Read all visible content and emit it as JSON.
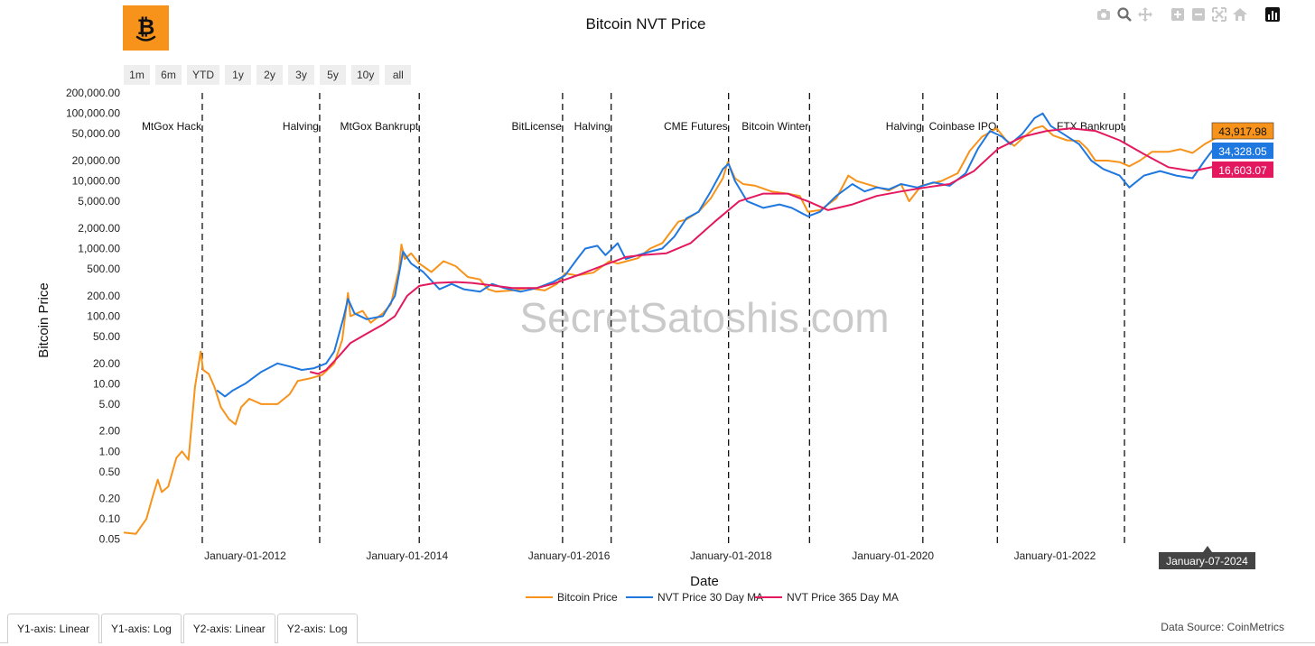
{
  "logo": {
    "glyph": "₿"
  },
  "toolbar": {
    "icons": [
      "camera-icon",
      "zoom-icon",
      "pan-icon",
      "zoom-in-icon",
      "zoom-out-icon",
      "autoscale-icon",
      "home-icon",
      "chart-bars-icon"
    ]
  },
  "range_buttons": [
    "1m",
    "6m",
    "YTD",
    "1y",
    "2y",
    "3y",
    "5y",
    "10y",
    "all"
  ],
  "tabs": [
    "Y1-axis: Linear",
    "Y1-axis: Log",
    "Y2-axis: Linear",
    "Y2-axis: Log"
  ],
  "source": "Data Source: CoinMetrics",
  "watermark": "SecretSatoshis.com",
  "chart_data": {
    "type": "line",
    "title": "Bitcoin NVT Price",
    "xlabel": "Date",
    "ylabel": "Bitcoin Price",
    "yscale": "log",
    "ylim": [
      0.04,
      220000
    ],
    "xlim": [
      2010.5,
      2024.7
    ],
    "x_ticks": [
      {
        "x": 2012.0,
        "label": "January-01-2012"
      },
      {
        "x": 2014.0,
        "label": "January-01-2014"
      },
      {
        "x": 2016.0,
        "label": "January-01-2016"
      },
      {
        "x": 2018.0,
        "label": "January-01-2018"
      },
      {
        "x": 2020.0,
        "label": "January-01-2020"
      },
      {
        "x": 2022.0,
        "label": "January-01-2022"
      }
    ],
    "y_ticks": [
      {
        "v": 0.05,
        "label": "0.05"
      },
      {
        "v": 0.1,
        "label": "0.10"
      },
      {
        "v": 0.2,
        "label": "0.20"
      },
      {
        "v": 0.5,
        "label": "0.50"
      },
      {
        "v": 1,
        "label": "1.00"
      },
      {
        "v": 2,
        "label": "2.00"
      },
      {
        "v": 5,
        "label": "5.00"
      },
      {
        "v": 10,
        "label": "10.00"
      },
      {
        "v": 20,
        "label": "20.00"
      },
      {
        "v": 50,
        "label": "50.00"
      },
      {
        "v": 100,
        "label": "100.00"
      },
      {
        "v": 200,
        "label": "200.00"
      },
      {
        "v": 500,
        "label": "500.00"
      },
      {
        "v": 1000,
        "label": "1,000.00"
      },
      {
        "v": 2000,
        "label": "2,000.00"
      },
      {
        "v": 5000,
        "label": "5,000.00"
      },
      {
        "v": 10000,
        "label": "10,000.00"
      },
      {
        "v": 20000,
        "label": "20,000.00"
      },
      {
        "v": 50000,
        "label": "50,000.00"
      },
      {
        "v": 100000,
        "label": "100,000.00"
      },
      {
        "v": 200000,
        "label": "200,000.00"
      }
    ],
    "events": [
      {
        "x": 2011.47,
        "label": "MtGox Hack",
        "label_side": "left"
      },
      {
        "x": 2012.92,
        "label": "Halving",
        "label_side": "left"
      },
      {
        "x": 2014.15,
        "label": "MtGox Bankrupt",
        "label_side": "left"
      },
      {
        "x": 2015.92,
        "label": "BitLicense",
        "label_side": "left"
      },
      {
        "x": 2016.52,
        "label": "Halving",
        "label_side": "left"
      },
      {
        "x": 2017.97,
        "label": "CME Futures",
        "label_side": "left"
      },
      {
        "x": 2018.97,
        "label": "Bitcoin Winter",
        "label_side": "left"
      },
      {
        "x": 2020.37,
        "label": "Halving",
        "label_side": "left"
      },
      {
        "x": 2021.29,
        "label": "Coinbase IPO",
        "label_side": "left"
      },
      {
        "x": 2022.86,
        "label": "FTX Bankrupt",
        "label_side": "left"
      }
    ],
    "series": [
      {
        "name": "Bitcoin Price",
        "color": "#f7931a",
        "points": [
          [
            2010.5,
            0.063
          ],
          [
            2010.65,
            0.06
          ],
          [
            2010.78,
            0.1
          ],
          [
            2010.85,
            0.2
          ],
          [
            2010.92,
            0.38
          ],
          [
            2010.97,
            0.25
          ],
          [
            2011.05,
            0.3
          ],
          [
            2011.15,
            0.8
          ],
          [
            2011.22,
            1.0
          ],
          [
            2011.3,
            0.75
          ],
          [
            2011.38,
            9.0
          ],
          [
            2011.45,
            30.0
          ],
          [
            2011.48,
            16.0
          ],
          [
            2011.55,
            14.0
          ],
          [
            2011.62,
            9.0
          ],
          [
            2011.7,
            4.5
          ],
          [
            2011.8,
            3.0
          ],
          [
            2011.88,
            2.5
          ],
          [
            2011.95,
            4.5
          ],
          [
            2012.05,
            6.0
          ],
          [
            2012.2,
            5.0
          ],
          [
            2012.4,
            5.0
          ],
          [
            2012.55,
            7.0
          ],
          [
            2012.65,
            11.0
          ],
          [
            2012.8,
            12.0
          ],
          [
            2012.95,
            13.5
          ],
          [
            2013.1,
            20.0
          ],
          [
            2013.2,
            45.0
          ],
          [
            2013.27,
            220.0
          ],
          [
            2013.3,
            100.0
          ],
          [
            2013.45,
            120.0
          ],
          [
            2013.55,
            80.0
          ],
          [
            2013.7,
            110.0
          ],
          [
            2013.8,
            150.0
          ],
          [
            2013.9,
            500.0
          ],
          [
            2013.93,
            1150.0
          ],
          [
            2013.97,
            700.0
          ],
          [
            2014.05,
            850.0
          ],
          [
            2014.15,
            600.0
          ],
          [
            2014.3,
            450.0
          ],
          [
            2014.45,
            650.0
          ],
          [
            2014.6,
            550.0
          ],
          [
            2014.75,
            380.0
          ],
          [
            2014.9,
            350.0
          ],
          [
            2015.0,
            250.0
          ],
          [
            2015.1,
            230.0
          ],
          [
            2015.3,
            240.0
          ],
          [
            2015.5,
            260.0
          ],
          [
            2015.7,
            240.0
          ],
          [
            2015.85,
            300.0
          ],
          [
            2015.95,
            430.0
          ],
          [
            2016.1,
            400.0
          ],
          [
            2016.3,
            440.0
          ],
          [
            2016.5,
            650.0
          ],
          [
            2016.6,
            600.0
          ],
          [
            2016.85,
            720.0
          ],
          [
            2017.0,
            1000.0
          ],
          [
            2017.15,
            1200.0
          ],
          [
            2017.35,
            2500.0
          ],
          [
            2017.45,
            2700.0
          ],
          [
            2017.6,
            3500.0
          ],
          [
            2017.75,
            5500.0
          ],
          [
            2017.9,
            11000.0
          ],
          [
            2017.96,
            19000.0
          ],
          [
            2018.05,
            11000.0
          ],
          [
            2018.15,
            9000.0
          ],
          [
            2018.3,
            8500.0
          ],
          [
            2018.5,
            7000.0
          ],
          [
            2018.7,
            6500.0
          ],
          [
            2018.85,
            6000.0
          ],
          [
            2018.95,
            3500.0
          ],
          [
            2019.1,
            3700.0
          ],
          [
            2019.3,
            5500.0
          ],
          [
            2019.45,
            12000.0
          ],
          [
            2019.55,
            10000.0
          ],
          [
            2019.75,
            8500.0
          ],
          [
            2019.95,
            7200.0
          ],
          [
            2020.1,
            9000.0
          ],
          [
            2020.2,
            5000.0
          ],
          [
            2020.35,
            8500.0
          ],
          [
            2020.6,
            10000.0
          ],
          [
            2020.8,
            13000.0
          ],
          [
            2020.95,
            28000.0
          ],
          [
            2021.1,
            45000.0
          ],
          [
            2021.28,
            60000.0
          ],
          [
            2021.4,
            40000.0
          ],
          [
            2021.5,
            33000.0
          ],
          [
            2021.62,
            45000.0
          ],
          [
            2021.75,
            60000.0
          ],
          [
            2021.85,
            65000.0
          ],
          [
            2021.98,
            47000.0
          ],
          [
            2022.15,
            40000.0
          ],
          [
            2022.3,
            39000.0
          ],
          [
            2022.4,
            30000.0
          ],
          [
            2022.5,
            20000.0
          ],
          [
            2022.65,
            20000.0
          ],
          [
            2022.8,
            19000.0
          ],
          [
            2022.92,
            16500.0
          ],
          [
            2023.05,
            20000.0
          ],
          [
            2023.2,
            27000.0
          ],
          [
            2023.4,
            27000.0
          ],
          [
            2023.55,
            29500.0
          ],
          [
            2023.7,
            26000.0
          ],
          [
            2023.85,
            35000.0
          ],
          [
            2024.0,
            43917.98
          ]
        ]
      },
      {
        "name": "NVT Price 30 Day MA",
        "color": "#1f77e0",
        "points": [
          [
            2011.65,
            8.0
          ],
          [
            2011.75,
            6.5
          ],
          [
            2011.85,
            8.0
          ],
          [
            2012.0,
            10.0
          ],
          [
            2012.2,
            15.0
          ],
          [
            2012.4,
            20.0
          ],
          [
            2012.55,
            18.0
          ],
          [
            2012.7,
            16.0
          ],
          [
            2012.85,
            17.0
          ],
          [
            2013.0,
            20.0
          ],
          [
            2013.1,
            30.0
          ],
          [
            2013.22,
            100.0
          ],
          [
            2013.27,
            180.0
          ],
          [
            2013.35,
            110.0
          ],
          [
            2013.5,
            90.0
          ],
          [
            2013.7,
            100.0
          ],
          [
            2013.85,
            200.0
          ],
          [
            2013.95,
            900.0
          ],
          [
            2014.05,
            600.0
          ],
          [
            2014.2,
            450.0
          ],
          [
            2014.4,
            250.0
          ],
          [
            2014.55,
            300.0
          ],
          [
            2014.7,
            250.0
          ],
          [
            2014.9,
            230.0
          ],
          [
            2015.05,
            300.0
          ],
          [
            2015.2,
            260.0
          ],
          [
            2015.4,
            230.0
          ],
          [
            2015.6,
            260.0
          ],
          [
            2015.8,
            320.0
          ],
          [
            2015.95,
            400.0
          ],
          [
            2016.1,
            700.0
          ],
          [
            2016.2,
            1000.0
          ],
          [
            2016.35,
            1100.0
          ],
          [
            2016.45,
            800.0
          ],
          [
            2016.6,
            1200.0
          ],
          [
            2016.7,
            700.0
          ],
          [
            2016.85,
            800.0
          ],
          [
            2017.0,
            900.0
          ],
          [
            2017.15,
            1000.0
          ],
          [
            2017.3,
            1500.0
          ],
          [
            2017.45,
            2800.0
          ],
          [
            2017.6,
            3500.0
          ],
          [
            2017.75,
            7000.0
          ],
          [
            2017.9,
            15000.0
          ],
          [
            2017.97,
            18000.0
          ],
          [
            2018.05,
            10000.0
          ],
          [
            2018.2,
            5000.0
          ],
          [
            2018.4,
            4000.0
          ],
          [
            2018.6,
            4500.0
          ],
          [
            2018.75,
            4000.0
          ],
          [
            2018.95,
            3000.0
          ],
          [
            2019.1,
            3500.0
          ],
          [
            2019.3,
            6000.0
          ],
          [
            2019.5,
            9000.0
          ],
          [
            2019.65,
            7000.0
          ],
          [
            2019.8,
            8000.0
          ],
          [
            2019.95,
            7500.0
          ],
          [
            2020.1,
            9000.0
          ],
          [
            2020.3,
            8000.0
          ],
          [
            2020.5,
            9500.0
          ],
          [
            2020.7,
            8500.0
          ],
          [
            2020.9,
            13000.0
          ],
          [
            2021.05,
            30000.0
          ],
          [
            2021.2,
            55000.0
          ],
          [
            2021.35,
            45000.0
          ],
          [
            2021.45,
            35000.0
          ],
          [
            2021.6,
            50000.0
          ],
          [
            2021.75,
            85000.0
          ],
          [
            2021.85,
            100000.0
          ],
          [
            2021.95,
            65000.0
          ],
          [
            2022.1,
            50000.0
          ],
          [
            2022.3,
            35000.0
          ],
          [
            2022.45,
            20000.0
          ],
          [
            2022.6,
            15000.0
          ],
          [
            2022.8,
            12000.0
          ],
          [
            2022.92,
            8000.0
          ],
          [
            2023.1,
            12000.0
          ],
          [
            2023.3,
            14000.0
          ],
          [
            2023.5,
            12000.0
          ],
          [
            2023.7,
            11000.0
          ],
          [
            2023.85,
            20000.0
          ],
          [
            2024.0,
            34328.05
          ]
        ]
      },
      {
        "name": "NVT Price 365 Day MA",
        "color": "#e3185f",
        "points": [
          [
            2012.8,
            15.0
          ],
          [
            2012.9,
            14.0
          ],
          [
            2013.0,
            16.0
          ],
          [
            2013.15,
            25.0
          ],
          [
            2013.3,
            40.0
          ],
          [
            2013.5,
            55.0
          ],
          [
            2013.7,
            75.0
          ],
          [
            2013.85,
            100.0
          ],
          [
            2014.0,
            200.0
          ],
          [
            2014.15,
            280.0
          ],
          [
            2014.35,
            310.0
          ],
          [
            2014.6,
            320.0
          ],
          [
            2014.8,
            310.0
          ],
          [
            2015.0,
            290.0
          ],
          [
            2015.3,
            260.0
          ],
          [
            2015.6,
            260.0
          ],
          [
            2015.8,
            300.0
          ],
          [
            2016.1,
            400.0
          ],
          [
            2016.4,
            550.0
          ],
          [
            2016.7,
            750.0
          ],
          [
            2016.9,
            800.0
          ],
          [
            2017.2,
            850.0
          ],
          [
            2017.5,
            1200.0
          ],
          [
            2017.8,
            2500.0
          ],
          [
            2018.1,
            5000.0
          ],
          [
            2018.4,
            6500.0
          ],
          [
            2018.7,
            6500.0
          ],
          [
            2018.95,
            5000.0
          ],
          [
            2019.2,
            3700.0
          ],
          [
            2019.5,
            4500.0
          ],
          [
            2019.8,
            6000.0
          ],
          [
            2020.1,
            7000.0
          ],
          [
            2020.4,
            8000.0
          ],
          [
            2020.7,
            9000.0
          ],
          [
            2021.0,
            14000.0
          ],
          [
            2021.3,
            30000.0
          ],
          [
            2021.6,
            45000.0
          ],
          [
            2021.9,
            55000.0
          ],
          [
            2022.2,
            60000.0
          ],
          [
            2022.5,
            55000.0
          ],
          [
            2022.8,
            40000.0
          ],
          [
            2023.1,
            25000.0
          ],
          [
            2023.4,
            16000.0
          ],
          [
            2023.7,
            14000.0
          ],
          [
            2024.0,
            16603.07
          ]
        ]
      }
    ],
    "end_labels": [
      "43,917.98",
      "34,328.05",
      "16,603.07"
    ],
    "hover_label": "January-07-2024",
    "legend_position": "bottom-center",
    "grid": false
  }
}
